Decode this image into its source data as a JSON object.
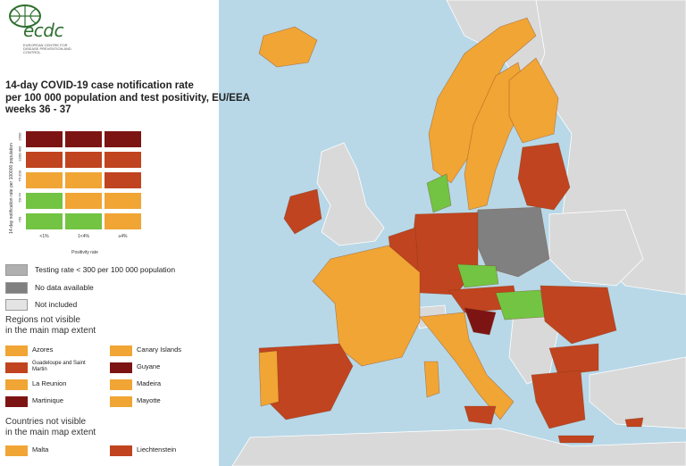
{
  "colors": {
    "sea": "#b8d8e8",
    "non_eu_land": "#d9d9d9",
    "dark_red": "#7d1414",
    "red": "#c0441f",
    "orange": "#f0a535",
    "green": "#72c442",
    "grey_testing": "#b0b0b0",
    "grey_nodata": "#808080",
    "light_grey": "#e4e4e4",
    "logo_green": "#2f6f2f"
  },
  "logo": {
    "text": "ecdc",
    "subtitle": "EUROPEAN CENTRE FOR DISEASE PREVENTION AND CONTROL"
  },
  "title": {
    "line1": "14-day COVID-19 case notification rate",
    "line2": "per 100 000 population and test positivity, EU/EEA",
    "line3": "weeks 36 - 37"
  },
  "matrix": {
    "y_axis_label": "14-day notification rate per 100000 population",
    "x_axis_label": "Positivity rate",
    "columns": [
      "<1%",
      "1<4%",
      "≥4%"
    ],
    "rows": [
      "≥500",
      "≥200-499",
      "75-200",
      "50-74",
      "<50"
    ],
    "cells": [
      [
        "dark_red",
        "dark_red",
        "dark_red"
      ],
      [
        "red",
        "red",
        "red"
      ],
      [
        "orange",
        "orange",
        "red"
      ],
      [
        "green",
        "orange",
        "orange"
      ],
      [
        "green",
        "green",
        "orange"
      ]
    ]
  },
  "legend": {
    "testing_rate": "Testing rate < 300 per 100 000 population",
    "no_data": "No data available",
    "not_included": "Not included"
  },
  "regions_section": {
    "line1": "Regions not visible",
    "line2": "in the main map extent"
  },
  "regions": [
    {
      "label": "Azores",
      "color": "orange"
    },
    {
      "label": "Canary Islands",
      "color": "orange"
    },
    {
      "label": "Guadeloupe and Saint Martin",
      "color": "red"
    },
    {
      "label": "Guyane",
      "color": "dark_red"
    },
    {
      "label": "La Reunion",
      "color": "orange"
    },
    {
      "label": "Madeira",
      "color": "orange"
    },
    {
      "label": "Martinique",
      "color": "dark_red"
    },
    {
      "label": "Mayotte",
      "color": "orange"
    }
  ],
  "countries_section": {
    "line1": "Countries not visible",
    "line2": "in the main map extent"
  },
  "countries": [
    {
      "label": "Malta",
      "color": "orange"
    },
    {
      "label": "Liechtenstein",
      "color": "red"
    }
  ]
}
